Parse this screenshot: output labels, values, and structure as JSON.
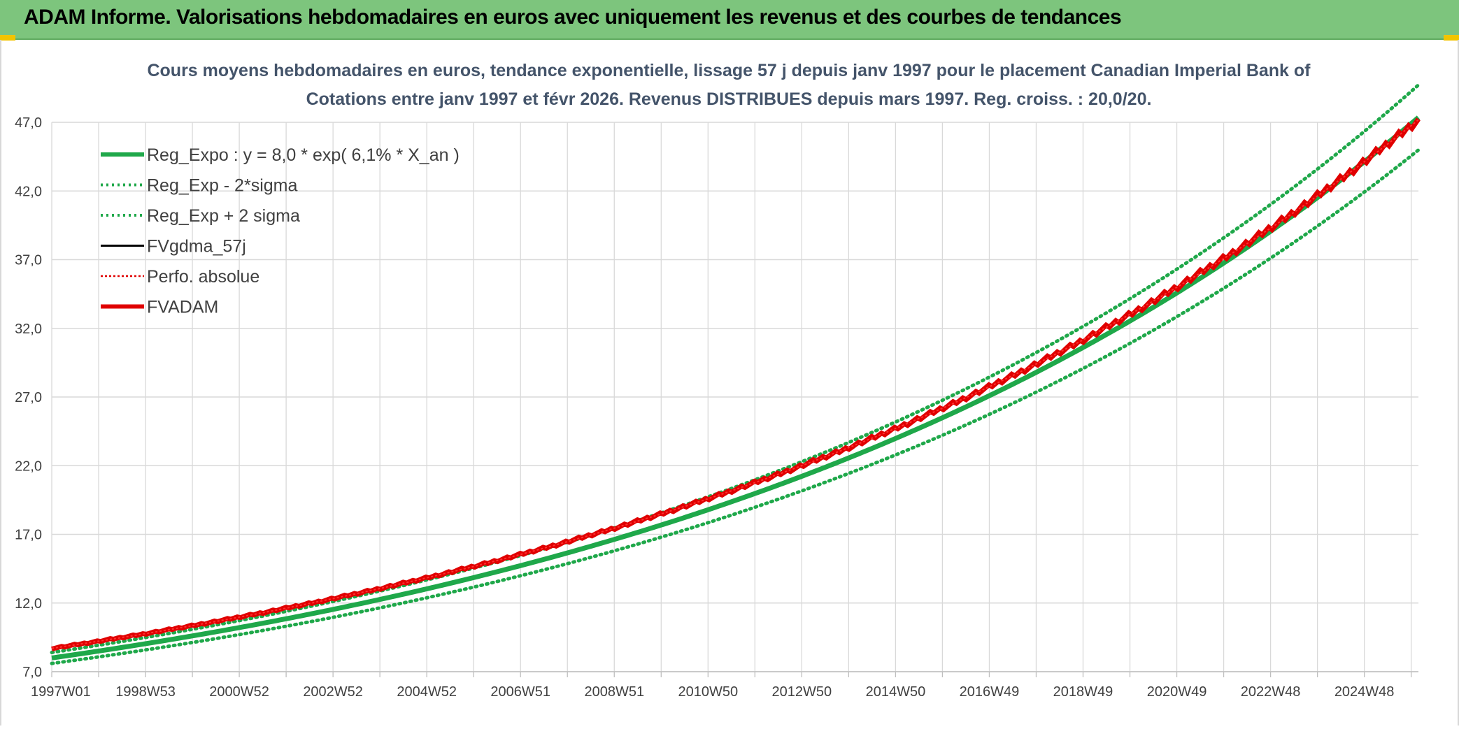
{
  "banner": {
    "title": "ADAM Informe. Valorisations hebdomadaires en euros avec uniquement les revenus et des courbes de tendances"
  },
  "colors": {
    "banner_bg": "#7dc57d",
    "reg_expo": "#1fa84a",
    "sigma": "#1fa84a",
    "fvgdma": "#000000",
    "perfo": "#e00000",
    "fvadam": "#e00000",
    "grid": "#d9d9d9"
  },
  "chart_data": {
    "type": "line",
    "title_line1": "Cours moyens hebdomadaires en euros, tendance exponentielle, lissage 57 j depuis janv 1997 pour le placement Canadian Imperial Bank of",
    "title_line2": "Cotations entre janv 1997 et févr 2026. Revenus DISTRIBUES depuis mars 1997. Reg. croiss. : 20,0/20.",
    "ylim": [
      7.0,
      47.0
    ],
    "y_ticks": [
      "7,0",
      "12,0",
      "17,0",
      "22,0",
      "27,0",
      "32,0",
      "37,0",
      "42,0",
      "47,0"
    ],
    "x_ticks": [
      "1997W01",
      "1998W53",
      "2000W52",
      "2002W52",
      "2004W52",
      "2006W51",
      "2008W51",
      "2010W50",
      "2012W50",
      "2014W50",
      "2016W49",
      "2018W49",
      "2020W49",
      "2022W48",
      "2024W48"
    ],
    "x_range_years": [
      1997.0,
      2026.15
    ],
    "grid": true,
    "legend_position": "top-left",
    "series": [
      {
        "name": "Reg_Expo : y = 8,0 * exp( 6,1% *  X_an )",
        "style": "solid-thick",
        "a": 8.0,
        "r": 0.061,
        "points": [
          [
            1997.0,
            8.0
          ],
          [
            2002.0,
            10.8
          ],
          [
            2007.0,
            14.6
          ],
          [
            2012.0,
            19.9
          ],
          [
            2017.0,
            27.0
          ],
          [
            2022.0,
            36.5
          ],
          [
            2026.15,
            47.7
          ]
        ]
      },
      {
        "name": "Reg_Exp - 2*sigma",
        "style": "dotted",
        "points": [
          [
            1997.0,
            7.6
          ],
          [
            2002.0,
            10.3
          ],
          [
            2007.0,
            13.9
          ],
          [
            2012.0,
            18.9
          ],
          [
            2017.0,
            25.6
          ],
          [
            2022.0,
            34.7
          ],
          [
            2026.15,
            45.3
          ]
        ]
      },
      {
        "name": "Reg_Exp + 2 sigma",
        "style": "dotted",
        "points": [
          [
            1997.0,
            8.4
          ],
          [
            2002.0,
            11.4
          ],
          [
            2007.0,
            15.4
          ],
          [
            2012.0,
            20.9
          ],
          [
            2017.0,
            28.4
          ],
          [
            2022.0,
            38.4
          ],
          [
            2026.15,
            50.1
          ]
        ]
      },
      {
        "name": "FVgdma_57j",
        "style": "solid",
        "a": 8.7,
        "r": 0.058,
        "points": [
          [
            1997.0,
            8.7
          ],
          [
            2002.0,
            11.6
          ],
          [
            2007.0,
            15.5
          ],
          [
            2012.0,
            20.6
          ],
          [
            2017.0,
            27.4
          ],
          [
            2022.0,
            36.4
          ],
          [
            2026.15,
            46.2
          ]
        ]
      },
      {
        "name": "Perfo. absolue",
        "style": "dotted",
        "points": [
          [
            1997.0,
            8.7
          ],
          [
            2002.0,
            11.6
          ],
          [
            2007.0,
            15.5
          ],
          [
            2012.0,
            20.6
          ],
          [
            2017.0,
            27.4
          ],
          [
            2022.0,
            36.4
          ],
          [
            2026.15,
            46.2
          ]
        ]
      },
      {
        "name": "FVADAM",
        "style": "solid-thick-stepped",
        "a": 8.7,
        "r": 0.058,
        "points": [
          [
            1997.0,
            8.7
          ],
          [
            2002.0,
            11.6
          ],
          [
            2007.0,
            15.5
          ],
          [
            2012.0,
            20.6
          ],
          [
            2017.0,
            27.4
          ],
          [
            2022.0,
            36.4
          ],
          [
            2026.15,
            46.7
          ]
        ]
      }
    ]
  }
}
